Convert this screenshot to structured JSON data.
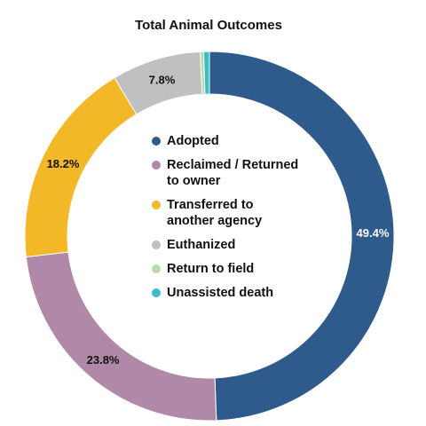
{
  "chart_data": {
    "type": "pie",
    "style": "donut",
    "title": "Total Animal Outcomes",
    "categories": [
      "Adopted",
      "Reclaimed / Returned to owner",
      "Transferred to another agency",
      "Euthanized",
      "Return to field",
      "Unassisted death"
    ],
    "values": [
      49.4,
      23.8,
      18.2,
      7.8,
      0.3,
      0.5
    ],
    "data_labels": [
      "49.4%",
      "23.8%",
      "18.2%",
      "7.8%",
      "",
      ""
    ],
    "colors": [
      "#2e5a8c",
      "#b088a8",
      "#f2b827",
      "#c0c0c0",
      "#b8dca8",
      "#3bbfc4"
    ],
    "label_colors": [
      "#ffffff",
      "#111111",
      "#111111",
      "#111111",
      "#111111",
      "#111111"
    ],
    "legend_placement": "center",
    "legend": [
      {
        "label": "Adopted",
        "color": "#2e5a8c"
      },
      {
        "label": "Reclaimed / Returned to owner",
        "color": "#b088a8"
      },
      {
        "label": "Transferred to another agency",
        "color": "#f2b827"
      },
      {
        "label": "Euthanized",
        "color": "#c0c0c0"
      },
      {
        "label": "Return to field",
        "color": "#b8dca8"
      },
      {
        "label": "Unassisted death",
        "color": "#3bbfc4"
      }
    ]
  }
}
